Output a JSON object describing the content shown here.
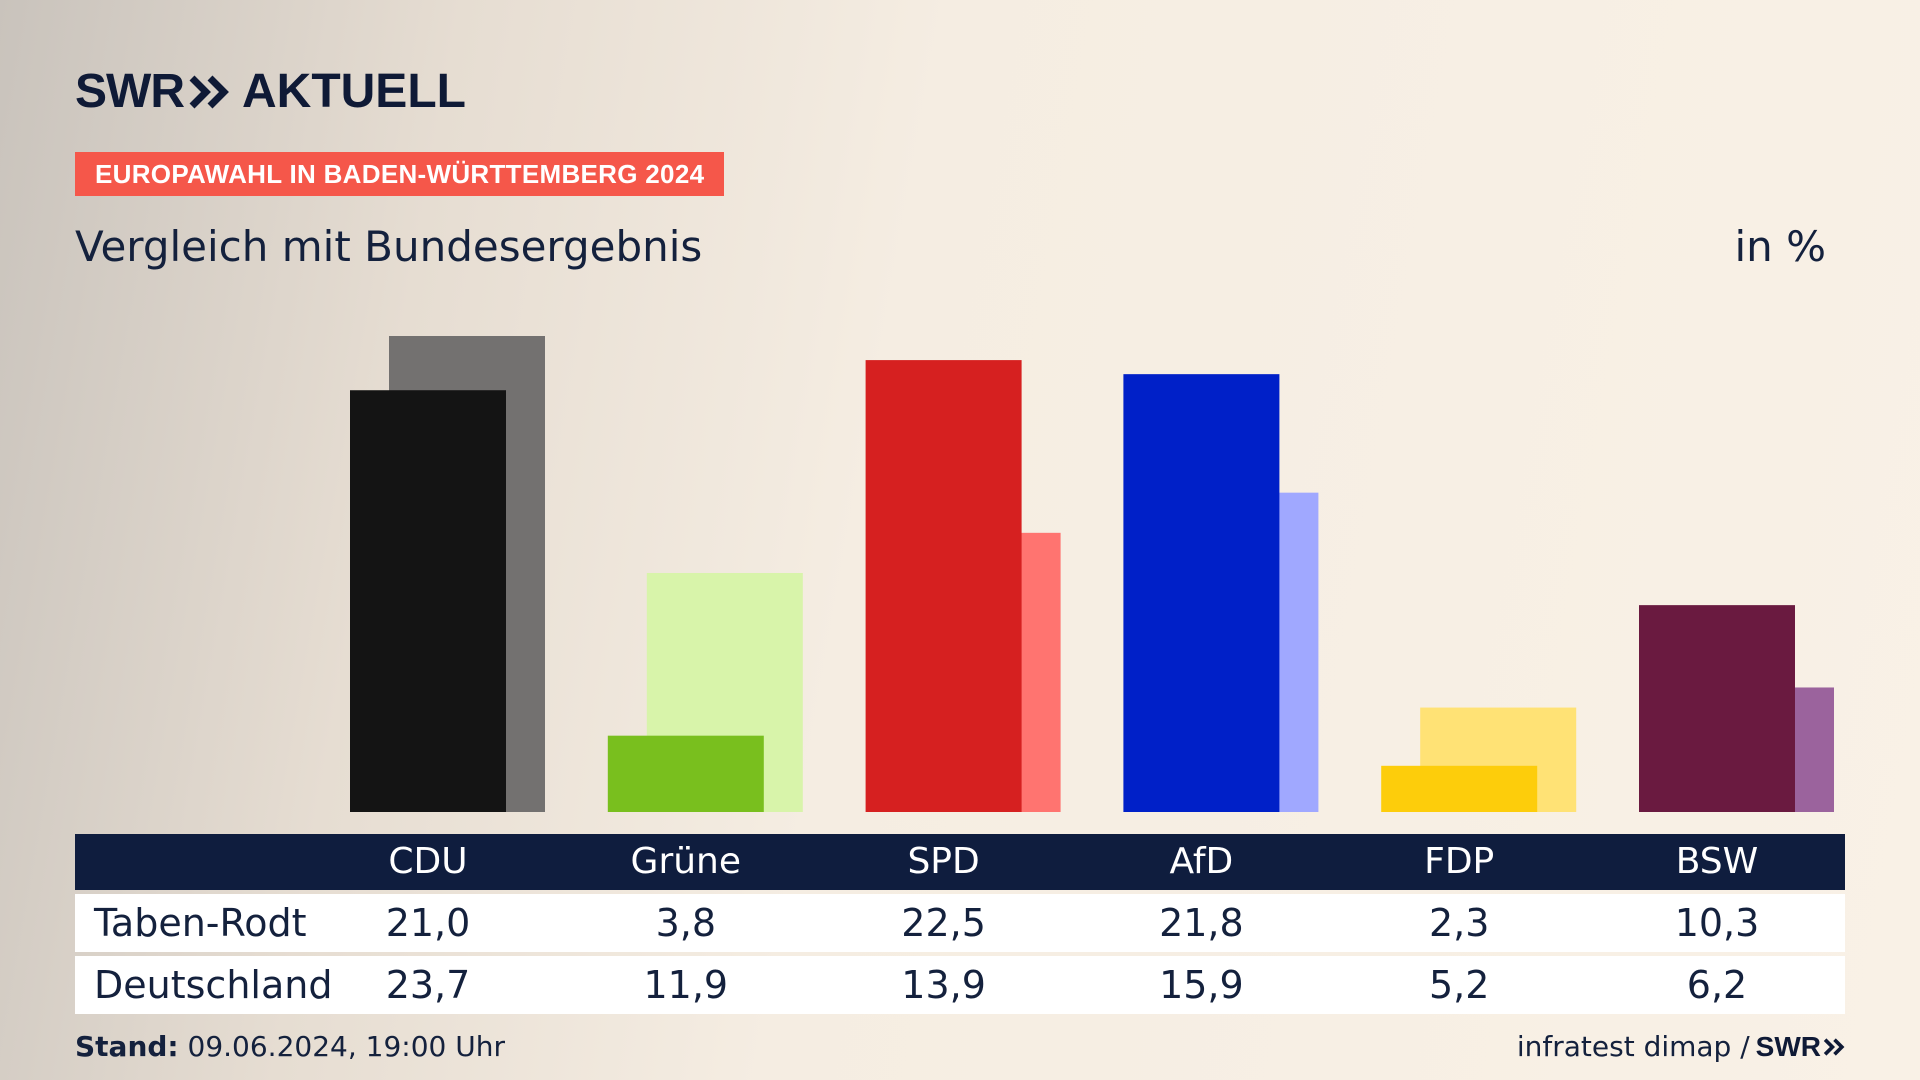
{
  "header": {
    "logo_left": "SWR",
    "logo_right": "AKTUELL",
    "tag": "EUROPAWAHL IN BADEN-WÜRTTEMBERG 2024",
    "subtitle": "Vergleich mit Bundesergebnis",
    "unit": "in %"
  },
  "table": {
    "rows": [
      {
        "label": "Taben-Rodt",
        "values": [
          "21,0",
          "3,8",
          "22,5",
          "21,8",
          "2,3",
          "10,3"
        ]
      },
      {
        "label": "Deutschland",
        "values": [
          "23,7",
          "11,9",
          "13,9",
          "15,9",
          "5,2",
          "6,2"
        ]
      }
    ]
  },
  "footer": {
    "stand_label": "Stand:",
    "stand_value": " 09.06.2024, 19:00 Uhr",
    "source": "infratest dimap /",
    "source_logo": "SWR"
  },
  "chart_data": {
    "type": "bar",
    "categories": [
      "CDU",
      "Grüne",
      "SPD",
      "AfD",
      "FDP",
      "BSW"
    ],
    "series": [
      {
        "name": "Taben-Rodt",
        "values": [
          21.0,
          3.8,
          22.5,
          21.8,
          2.3,
          10.3
        ]
      },
      {
        "name": "Deutschland",
        "values": [
          23.7,
          11.9,
          13.9,
          15.9,
          5.2,
          6.2
        ]
      }
    ],
    "colors": {
      "primary": [
        "#141414",
        "#79bf1e",
        "#d62020",
        "#0020c8",
        "#fdcd0b",
        "#6a1a40"
      ],
      "secondary": [
        "#737170",
        "#d8f4aa",
        "#ff7470",
        "#a0a8ff",
        "#ffe275",
        "#9b639d"
      ]
    },
    "ylim": [
      0,
      23.7
    ]
  }
}
